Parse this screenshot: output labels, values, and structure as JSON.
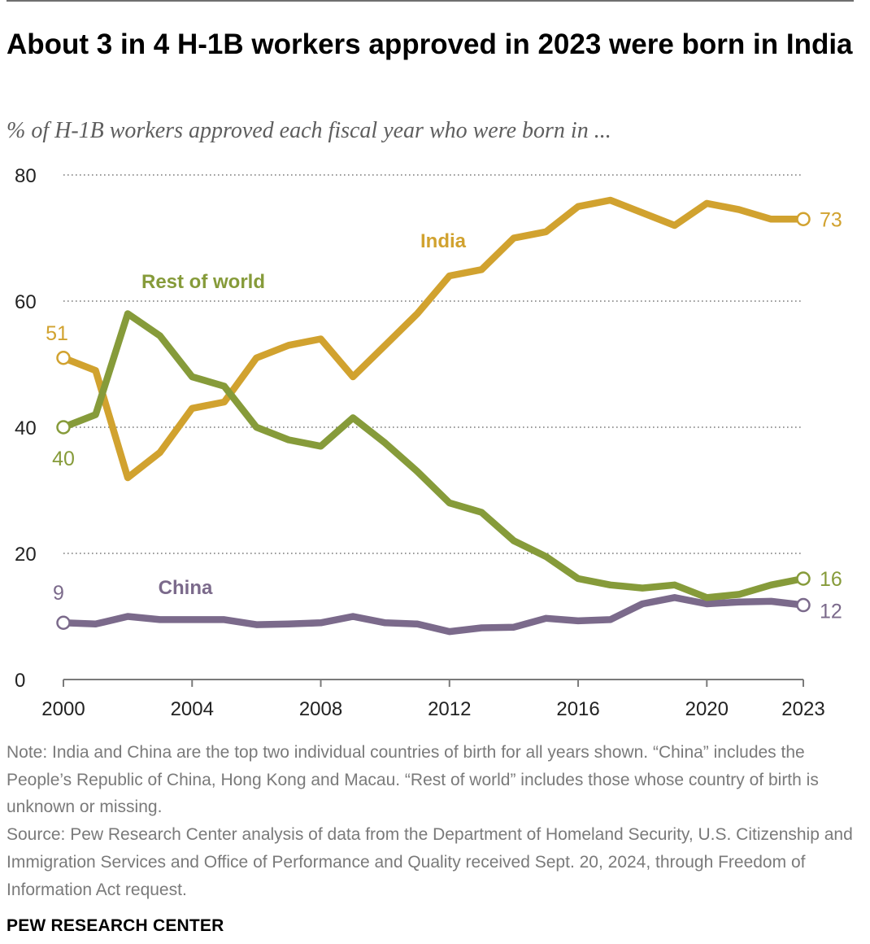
{
  "title": "About 3 in 4 H-1B workers approved in 2023 were born in India",
  "subtitle": "% of H-1B workers approved each fiscal year who were born in ...",
  "notes": {
    "note": "Note: India and China are the top two individual countries of birth for all years shown. “China” includes the People’s Republic of China, Hong Kong and Macau. “Rest of world” includes those whose country of birth is unknown or missing.",
    "source": "Source: Pew Research Center analysis of data from the Department of Homeland Security, U.S. Citizenship and Immigration Services and Office of Performance and Quality received Sept. 20, 2024, through Freedom of Information Act request."
  },
  "brand": "PEW RESEARCH CENTER",
  "chart_data": {
    "type": "line",
    "title": "About 3 in 4 H-1B workers approved in 2023 were born in India",
    "subtitle": "% of H-1B workers approved each fiscal year who were born in ...",
    "x": [
      2000,
      2001,
      2002,
      2003,
      2004,
      2005,
      2006,
      2007,
      2008,
      2009,
      2010,
      2011,
      2012,
      2013,
      2014,
      2015,
      2016,
      2017,
      2018,
      2019,
      2020,
      2021,
      2022,
      2023
    ],
    "xlim": [
      2000,
      2023
    ],
    "ylim": [
      0,
      80
    ],
    "x_ticks": [
      "2000",
      "2004",
      "2008",
      "2012",
      "2016",
      "2020",
      "2023"
    ],
    "x_tick_values": [
      2000,
      2004,
      2008,
      2012,
      2016,
      2020,
      2023
    ],
    "y_ticks": [
      "0",
      "20",
      "40",
      "60",
      "80"
    ],
    "y_tick_values": [
      0,
      20,
      40,
      60,
      80
    ],
    "grid": "horizontal dotted",
    "legend": "direct labels",
    "series": [
      {
        "name": "India",
        "color": "#d1a22f",
        "values": [
          51,
          49,
          32,
          36,
          43,
          44,
          51,
          53,
          54,
          48,
          53,
          58,
          64,
          65,
          70,
          71,
          75,
          76,
          74,
          72,
          75.5,
          74.5,
          73,
          73
        ],
        "start_label": "51",
        "end_label": "73"
      },
      {
        "name": "Rest of world",
        "color": "#869b3a",
        "values": [
          40,
          42,
          58,
          54.5,
          48,
          46.5,
          40,
          38,
          37,
          41.5,
          37.5,
          33,
          28,
          26.5,
          22,
          19.5,
          16,
          15,
          14.5,
          15,
          13,
          13.5,
          15,
          16
        ],
        "start_label": "40",
        "end_label": "16"
      },
      {
        "name": "China",
        "color": "#7b6a8b",
        "values": [
          9,
          8.8,
          10,
          9.5,
          9.5,
          9.5,
          8.7,
          8.8,
          9,
          10,
          9,
          8.8,
          7.6,
          8.2,
          8.3,
          9.7,
          9.3,
          9.5,
          12,
          13,
          12,
          12.3,
          12.4,
          11.8
        ],
        "start_label": "9",
        "end_label": "12"
      }
    ]
  }
}
